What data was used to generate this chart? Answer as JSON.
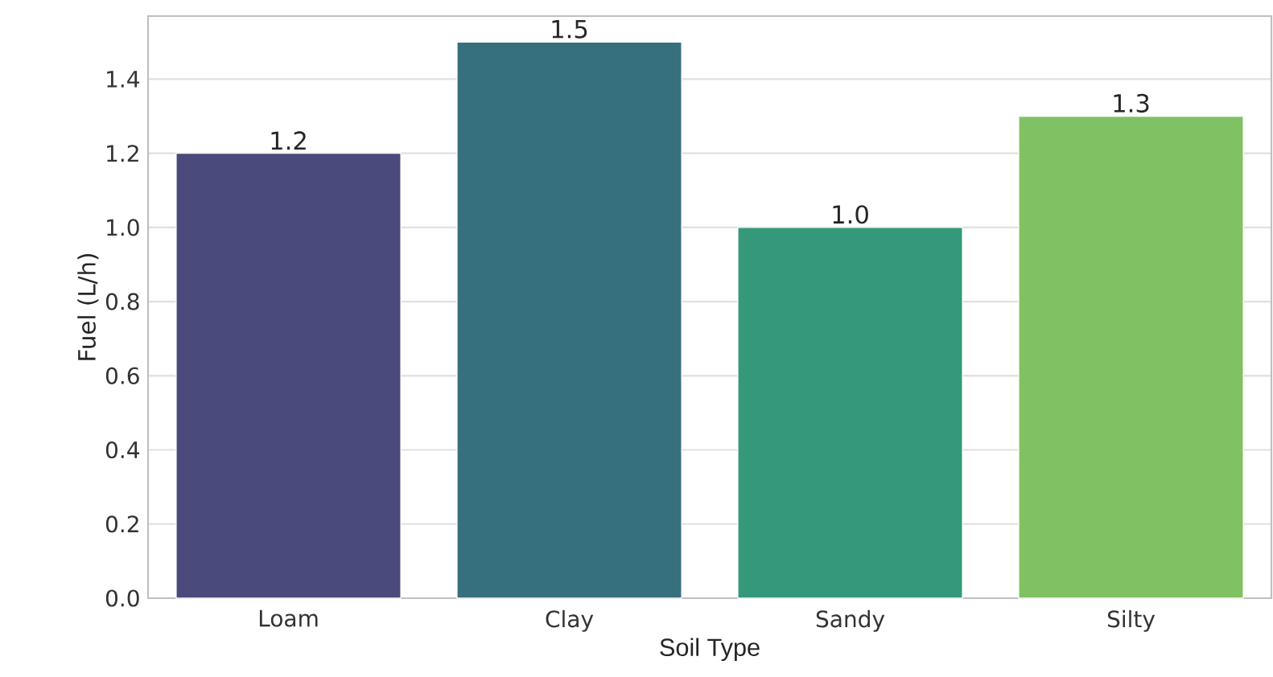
{
  "chart_data": {
    "type": "bar",
    "xlabel": "Soil Type",
    "ylabel": "Fuel (L/h)",
    "categories": [
      "Loam",
      "Clay",
      "Sandy",
      "Silty"
    ],
    "values": [
      1.2,
      1.5,
      1.0,
      1.3
    ],
    "value_labels": [
      "1.2",
      "1.5",
      "1.0",
      "1.3"
    ],
    "colors": [
      "#4a4a7c",
      "#36707f",
      "#35987b",
      "#80c263"
    ],
    "ylim": [
      0,
      1.57
    ],
    "yticks": [
      {
        "value": 0,
        "label": "0.0"
      },
      0.2,
      0.4,
      0.6,
      0.8,
      {
        "value": 1,
        "label": "1.0"
      },
      1.2,
      1.4
    ],
    "grid": "y"
  }
}
